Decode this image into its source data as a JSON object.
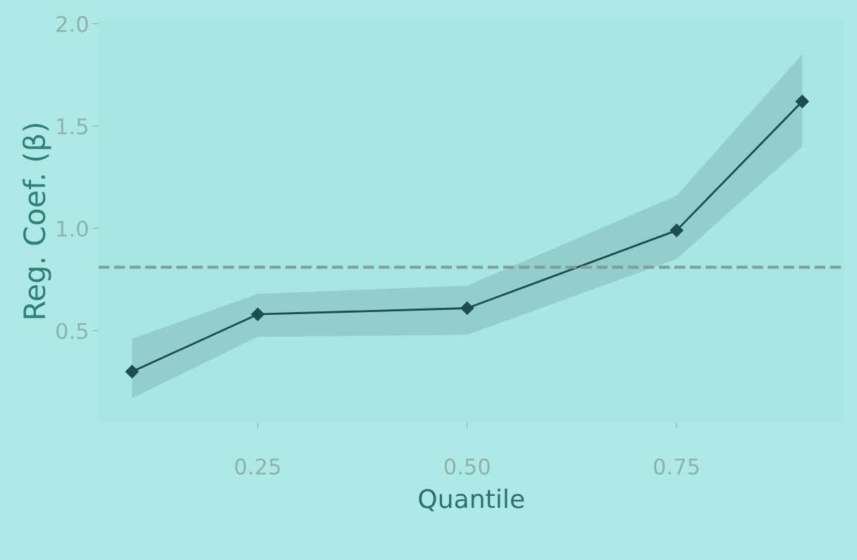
{
  "chart_data": {
    "type": "line",
    "xlabel": "Quantile",
    "ylabel": "Reg. Coef. (β)",
    "x": [
      0.1,
      0.25,
      0.5,
      0.75,
      0.9
    ],
    "series": [
      {
        "color": "#1d4d4f",
        "values": [
          0.3,
          0.58,
          0.61,
          0.99,
          1.62
        ],
        "lower": [
          0.17,
          0.47,
          0.48,
          0.85,
          1.4
        ],
        "upper": [
          0.46,
          0.68,
          0.72,
          1.16,
          1.85
        ]
      }
    ],
    "xlim": [
      0.06,
      0.95
    ],
    "ylim": [
      0.05,
      2.02
    ],
    "xticks": [
      {
        "value": 0.25,
        "label": "0.25"
      },
      {
        "value": 0.5,
        "label": "0.50"
      },
      {
        "value": 0.75,
        "label": "0.75"
      }
    ],
    "yticks": [
      {
        "value": 0.5,
        "label": "0.5"
      },
      {
        "value": 1.0,
        "label": "1.0"
      },
      {
        "value": 1.5,
        "label": "1.5"
      },
      {
        "value": 2.0,
        "label": "2.0"
      }
    ],
    "ref_lines": [
      {
        "axis": "y",
        "value": 0.81,
        "label": null,
        "color": "#7f9f9f",
        "line_style": "dashed"
      }
    ],
    "grid": false,
    "legend": false,
    "marker": "diamond",
    "line_style": "solid"
  }
}
